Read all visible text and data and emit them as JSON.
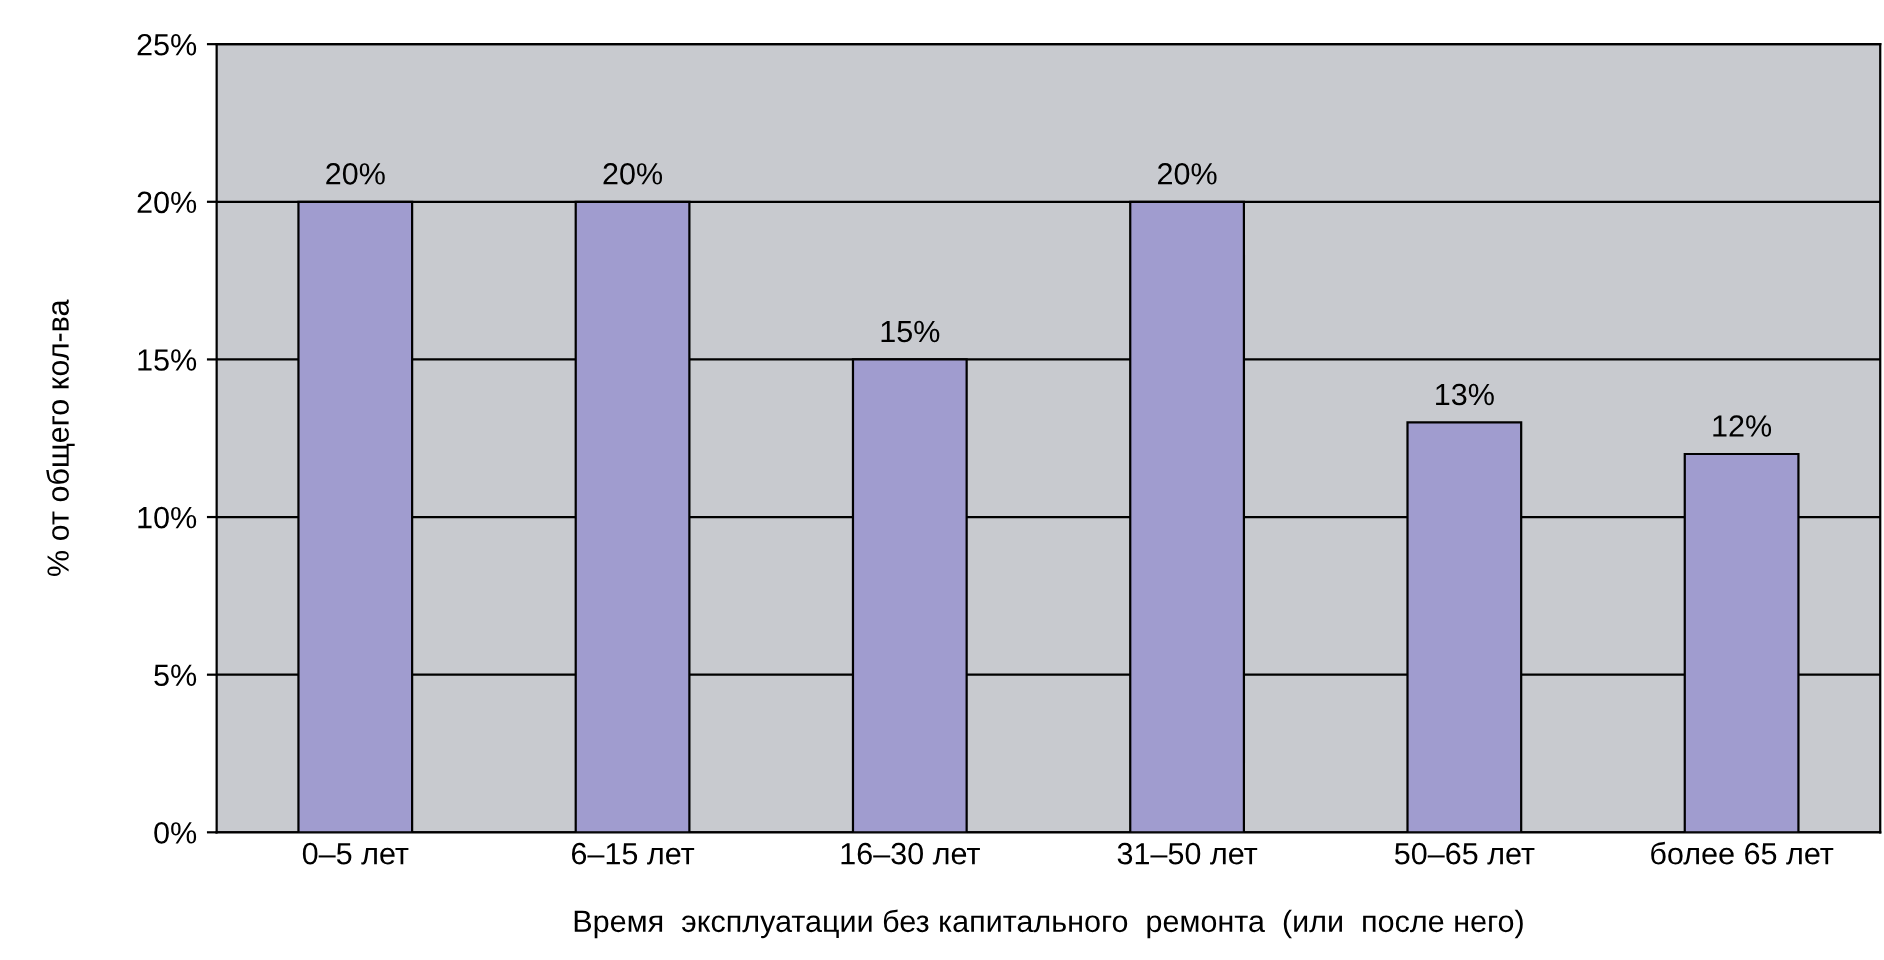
{
  "chart_data": {
    "type": "bar",
    "xlabel": "Время  эксплуатации без капитального  ремонта  (или  после него)",
    "ylabel": "% от общего кол-ва",
    "categories": [
      "0–5 лет",
      "6–15 лет",
      "16–30 лет",
      "31–50 лет",
      "50–65 лет",
      "более 65 лет"
    ],
    "values": [
      20,
      20,
      15,
      20,
      13,
      12
    ],
    "value_labels": [
      "20%",
      "20%",
      "15%",
      "20%",
      "13%",
      "12%"
    ],
    "color": "#a09ccf",
    "ylim": [
      0,
      25
    ],
    "yticks": [
      {
        "value": 0,
        "label": "0%"
      },
      {
        "value": 5,
        "label": "5%"
      },
      {
        "value": 10,
        "label": "10%"
      },
      {
        "value": 15,
        "label": "15%"
      },
      {
        "value": 20,
        "label": "20%"
      },
      {
        "value": 25,
        "label": "25%"
      }
    ],
    "grid": "y"
  }
}
